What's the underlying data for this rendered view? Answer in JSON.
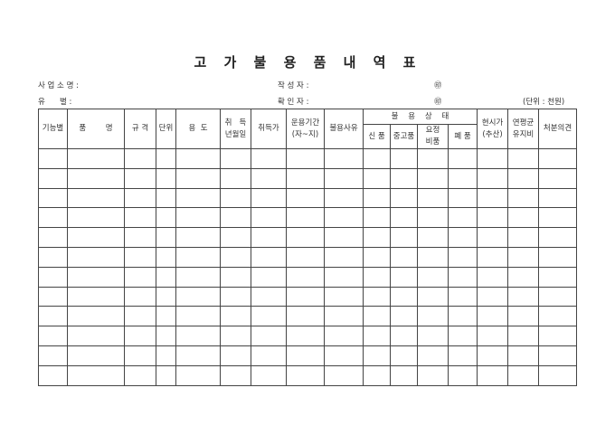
{
  "title": "고 가 불 용 품 내 역 표",
  "info": {
    "business_label": "사 업 소 명 :",
    "type_label": "유      별 :",
    "author_label": "작 성 자 :",
    "checker_label": "확 인 자 :",
    "seal1": "㊞",
    "seal2": "㊞",
    "unit": "(단위 : 천원)"
  },
  "headers": {
    "function": "기능별",
    "item_name": "품        명",
    "spec": "규 격",
    "unit": "단위",
    "usage": "용  도",
    "acq_date_1": "취   득",
    "acq_date_2": "년월일",
    "acq_price": "취득가",
    "period_1": "운용기간",
    "period_2": "(자~지)",
    "reason": "불용사유",
    "status": "불    용    상    태",
    "status_new": "신 품",
    "status_used": "중고품",
    "status_repair_1": "요정",
    "status_repair_2": "비품",
    "status_scrap": "폐 품",
    "current_1": "현시가",
    "current_2": "(추산)",
    "maint_1": "연평균",
    "maint_2": "유지비",
    "opinion": "처분의견"
  },
  "rows": [
    [],
    [],
    [],
    [],
    [],
    [],
    [],
    [],
    [],
    [],
    [],
    []
  ]
}
